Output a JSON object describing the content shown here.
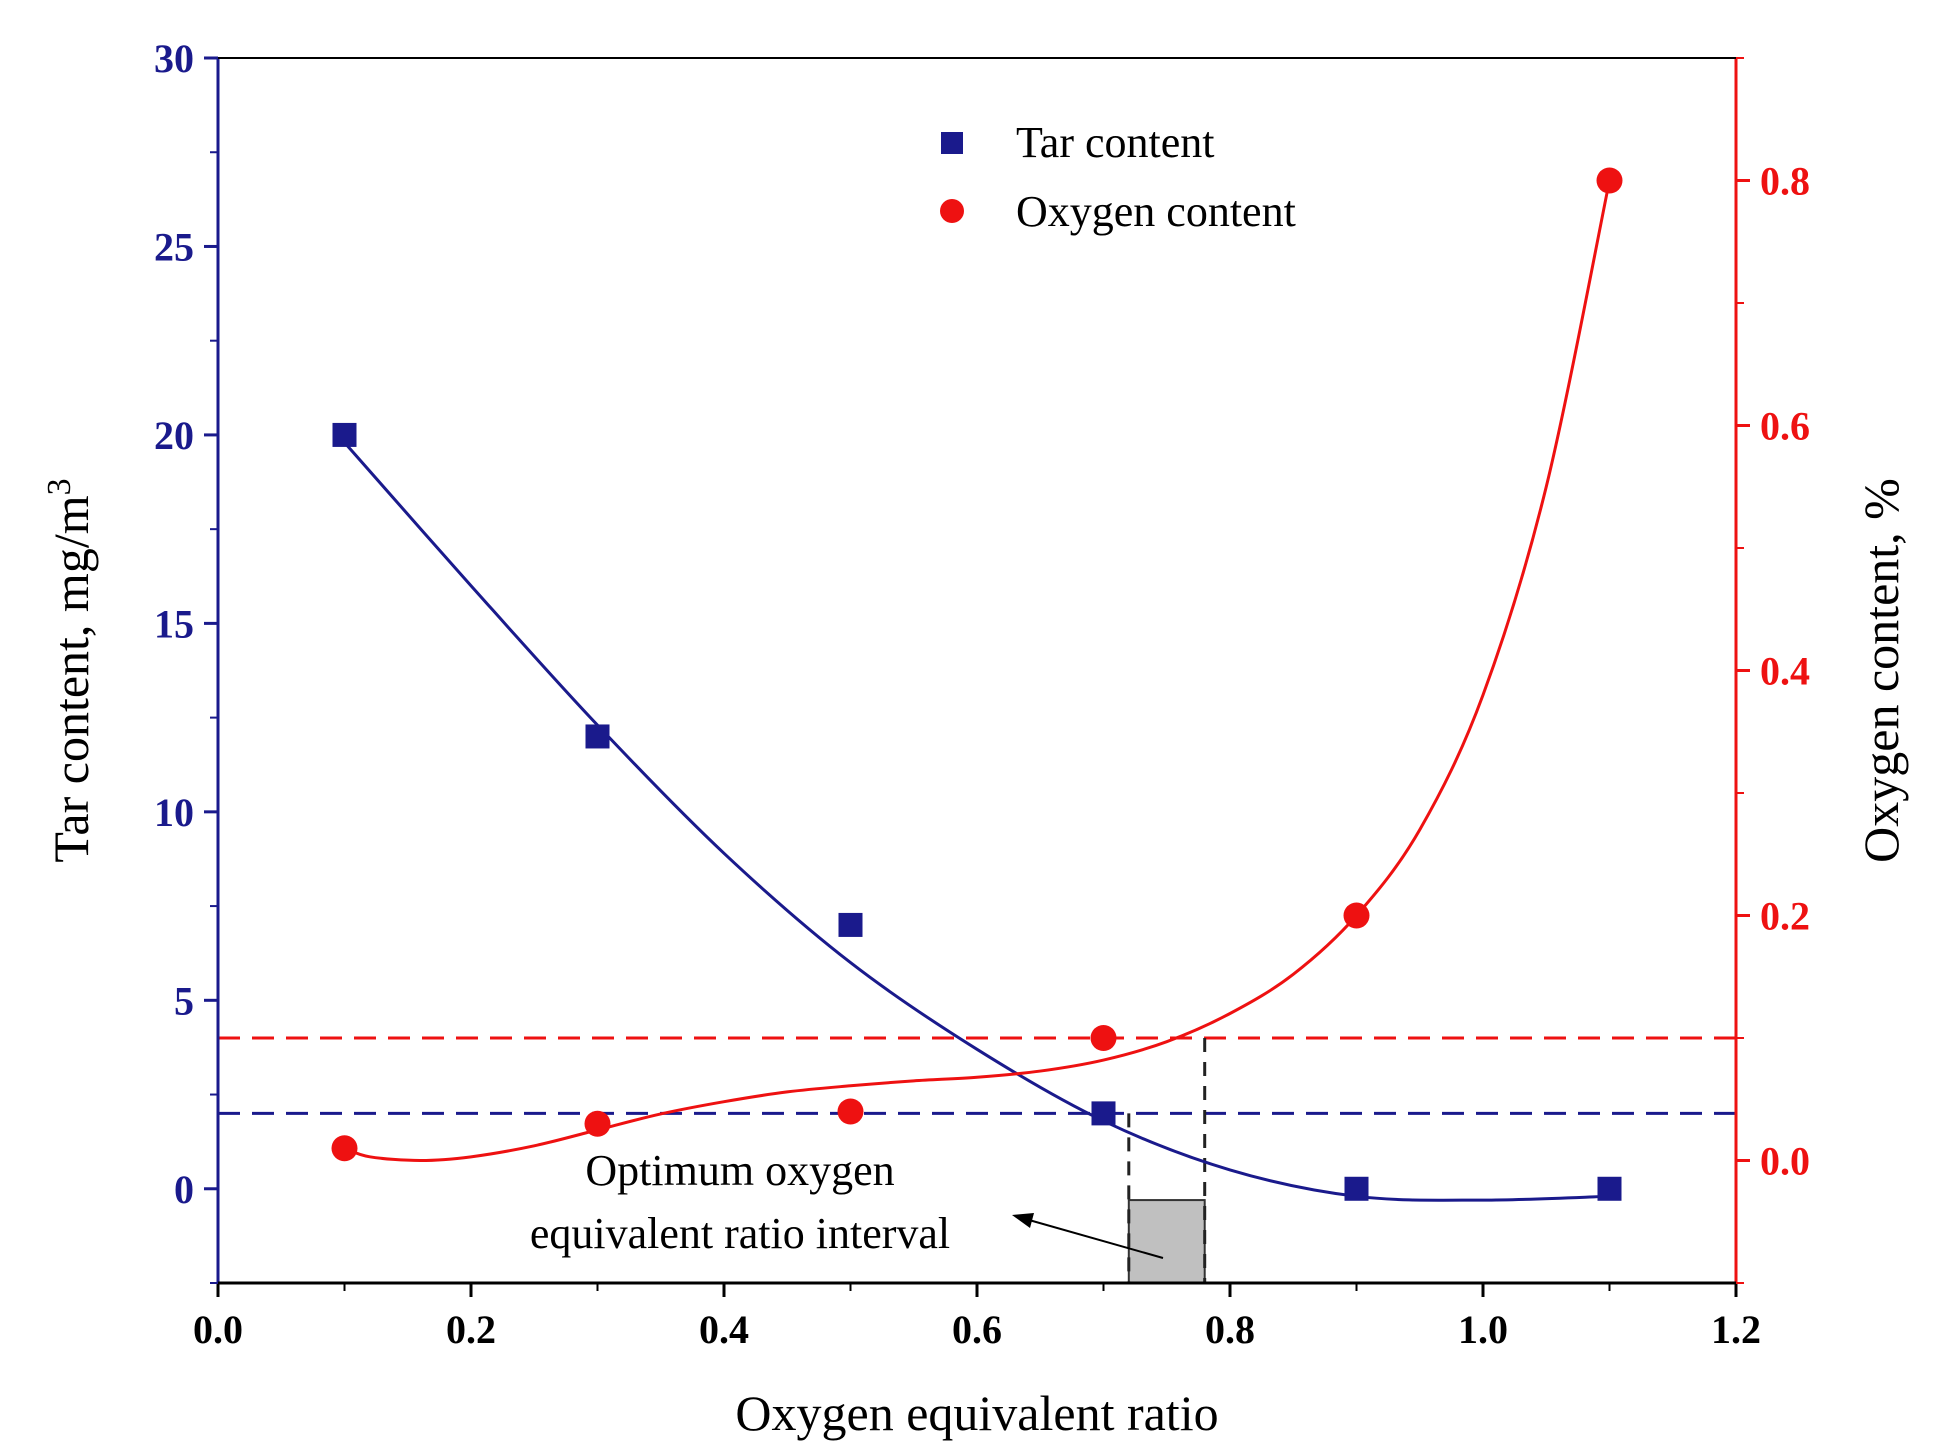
{
  "chart_data": {
    "type": "scatter",
    "title": "",
    "xlabel": "Oxygen equivalent ratio",
    "ylabel_left": "Tar content, mg/m",
    "ylabel_left_sup": "3",
    "ylabel_right": "Oxygen content, %",
    "xlim": [
      0.0,
      1.2
    ],
    "ylim_left": [
      -2.5,
      30
    ],
    "ylim_right": [
      -0.1,
      0.9
    ],
    "x_ticks": [
      "0.0",
      "0.2",
      "0.4",
      "0.6",
      "0.8",
      "1.0",
      "1.2"
    ],
    "y_left_ticks": [
      "0",
      "5",
      "10",
      "15",
      "20",
      "25",
      "30"
    ],
    "y_right_ticks": [
      "0.0",
      "0.2",
      "0.4",
      "0.6",
      "0.8"
    ],
    "series": [
      {
        "name": "Tar content",
        "axis": "left",
        "marker": "square",
        "color": "#1a1a8c",
        "x": [
          0.1,
          0.3,
          0.5,
          0.7,
          0.9,
          1.1
        ],
        "values": [
          20,
          12,
          7,
          2,
          0,
          0
        ],
        "fit_curve": {
          "x": [
            0.1,
            0.2,
            0.3,
            0.4,
            0.5,
            0.6,
            0.7,
            0.8,
            0.9,
            1.0,
            1.1
          ],
          "y": [
            19.8,
            16.0,
            12.3,
            8.9,
            6.0,
            3.7,
            1.8,
            0.5,
            -0.2,
            -0.3,
            -0.2
          ]
        }
      },
      {
        "name": "Oxygen content",
        "axis": "right",
        "marker": "circle",
        "color": "#ee1111",
        "x": [
          0.1,
          0.3,
          0.5,
          0.7,
          0.9,
          1.1
        ],
        "values": [
          0.01,
          0.03,
          0.04,
          0.1,
          0.2,
          0.8
        ],
        "fit_curve": {
          "x": [
            0.1,
            0.12,
            0.16,
            0.2,
            0.25,
            0.3,
            0.35,
            0.4,
            0.45,
            0.5,
            0.55,
            0.6,
            0.65,
            0.7,
            0.75,
            0.8,
            0.85,
            0.9,
            0.95,
            1.0,
            1.05,
            1.1
          ],
          "y": [
            0.01,
            0.003,
            0.0,
            0.003,
            0.012,
            0.025,
            0.038,
            0.048,
            0.056,
            0.061,
            0.065,
            0.068,
            0.073,
            0.082,
            0.097,
            0.12,
            0.152,
            0.2,
            0.27,
            0.38,
            0.55,
            0.8
          ]
        }
      }
    ],
    "reference_lines": [
      {
        "axis": "left",
        "y": 2,
        "color": "#1a1a8c",
        "style": "dashed"
      },
      {
        "axis": "right",
        "y": 0.1,
        "color": "#ee1111",
        "style": "dashed"
      }
    ],
    "interval": {
      "x_start": 0.72,
      "x_end": 0.78
    },
    "annotation": {
      "lines": [
        "Optimum oxygen",
        "equivalent ratio interval"
      ]
    },
    "legend": {
      "placement": "top-center"
    }
  }
}
